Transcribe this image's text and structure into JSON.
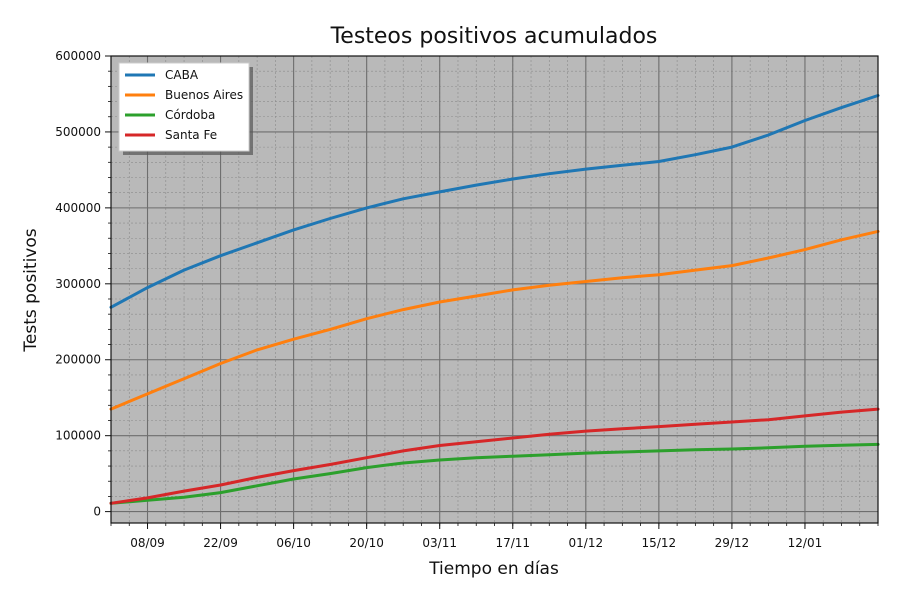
{
  "chart_data": {
    "type": "line",
    "title": "Testeos positivos acumulados",
    "xlabel": "Tiempo en días",
    "ylabel": "Tests positivos",
    "ylim": [
      -15000,
      600000
    ],
    "yticks": [
      0,
      100000,
      200000,
      300000,
      400000,
      500000,
      600000
    ],
    "x_start": "2020-09-01",
    "x_end": "2021-01-26",
    "xtick_labels": [
      "08/09",
      "22/09",
      "06/10",
      "20/10",
      "03/11",
      "17/11",
      "01/12",
      "15/12",
      "29/12",
      "12/01"
    ],
    "xtick_dates": [
      "2020-09-08",
      "2020-09-22",
      "2020-10-06",
      "2020-10-20",
      "2020-11-03",
      "2020-11-17",
      "2020-12-01",
      "2020-12-15",
      "2020-12-29",
      "2021-01-12"
    ],
    "grid": true,
    "legend_position": "top-left",
    "x": [
      "2020-09-01",
      "2020-09-08",
      "2020-09-15",
      "2020-09-22",
      "2020-09-29",
      "2020-10-06",
      "2020-10-13",
      "2020-10-20",
      "2020-10-27",
      "2020-11-03",
      "2020-11-10",
      "2020-11-17",
      "2020-11-24",
      "2020-12-01",
      "2020-12-08",
      "2020-12-15",
      "2020-12-22",
      "2020-12-29",
      "2021-01-05",
      "2021-01-12",
      "2021-01-19",
      "2021-01-26"
    ],
    "series": [
      {
        "name": "CABA",
        "color": "#1f77b4",
        "values": [
          269000,
          295000,
          318000,
          337000,
          354000,
          371000,
          386000,
          400000,
          412000,
          421000,
          430000,
          438000,
          445000,
          451000,
          456000,
          461000,
          470000,
          480000,
          496000,
          515000,
          532000,
          548000
        ]
      },
      {
        "name": "Buenos Aires",
        "color": "#ff7f0e",
        "values": [
          135000,
          155000,
          175000,
          195000,
          213000,
          227000,
          240000,
          254000,
          266000,
          276000,
          284000,
          292000,
          298000,
          303000,
          308000,
          312000,
          318000,
          324000,
          334000,
          345000,
          358000,
          369000
        ]
      },
      {
        "name": "Córdoba",
        "color": "#2ca02c",
        "values": [
          11000,
          15000,
          19000,
          25000,
          34000,
          43000,
          50000,
          58000,
          64000,
          68000,
          71000,
          73000,
          75000,
          77000,
          78500,
          80000,
          81500,
          82500,
          84000,
          86000,
          87500,
          88500
        ]
      },
      {
        "name": "Santa Fe",
        "color": "#d62728",
        "values": [
          11000,
          18000,
          27000,
          35000,
          45000,
          54000,
          62000,
          71000,
          80000,
          87000,
          92000,
          97000,
          102000,
          106000,
          109000,
          112000,
          115000,
          118000,
          121000,
          126000,
          131000,
          135000
        ]
      }
    ]
  }
}
